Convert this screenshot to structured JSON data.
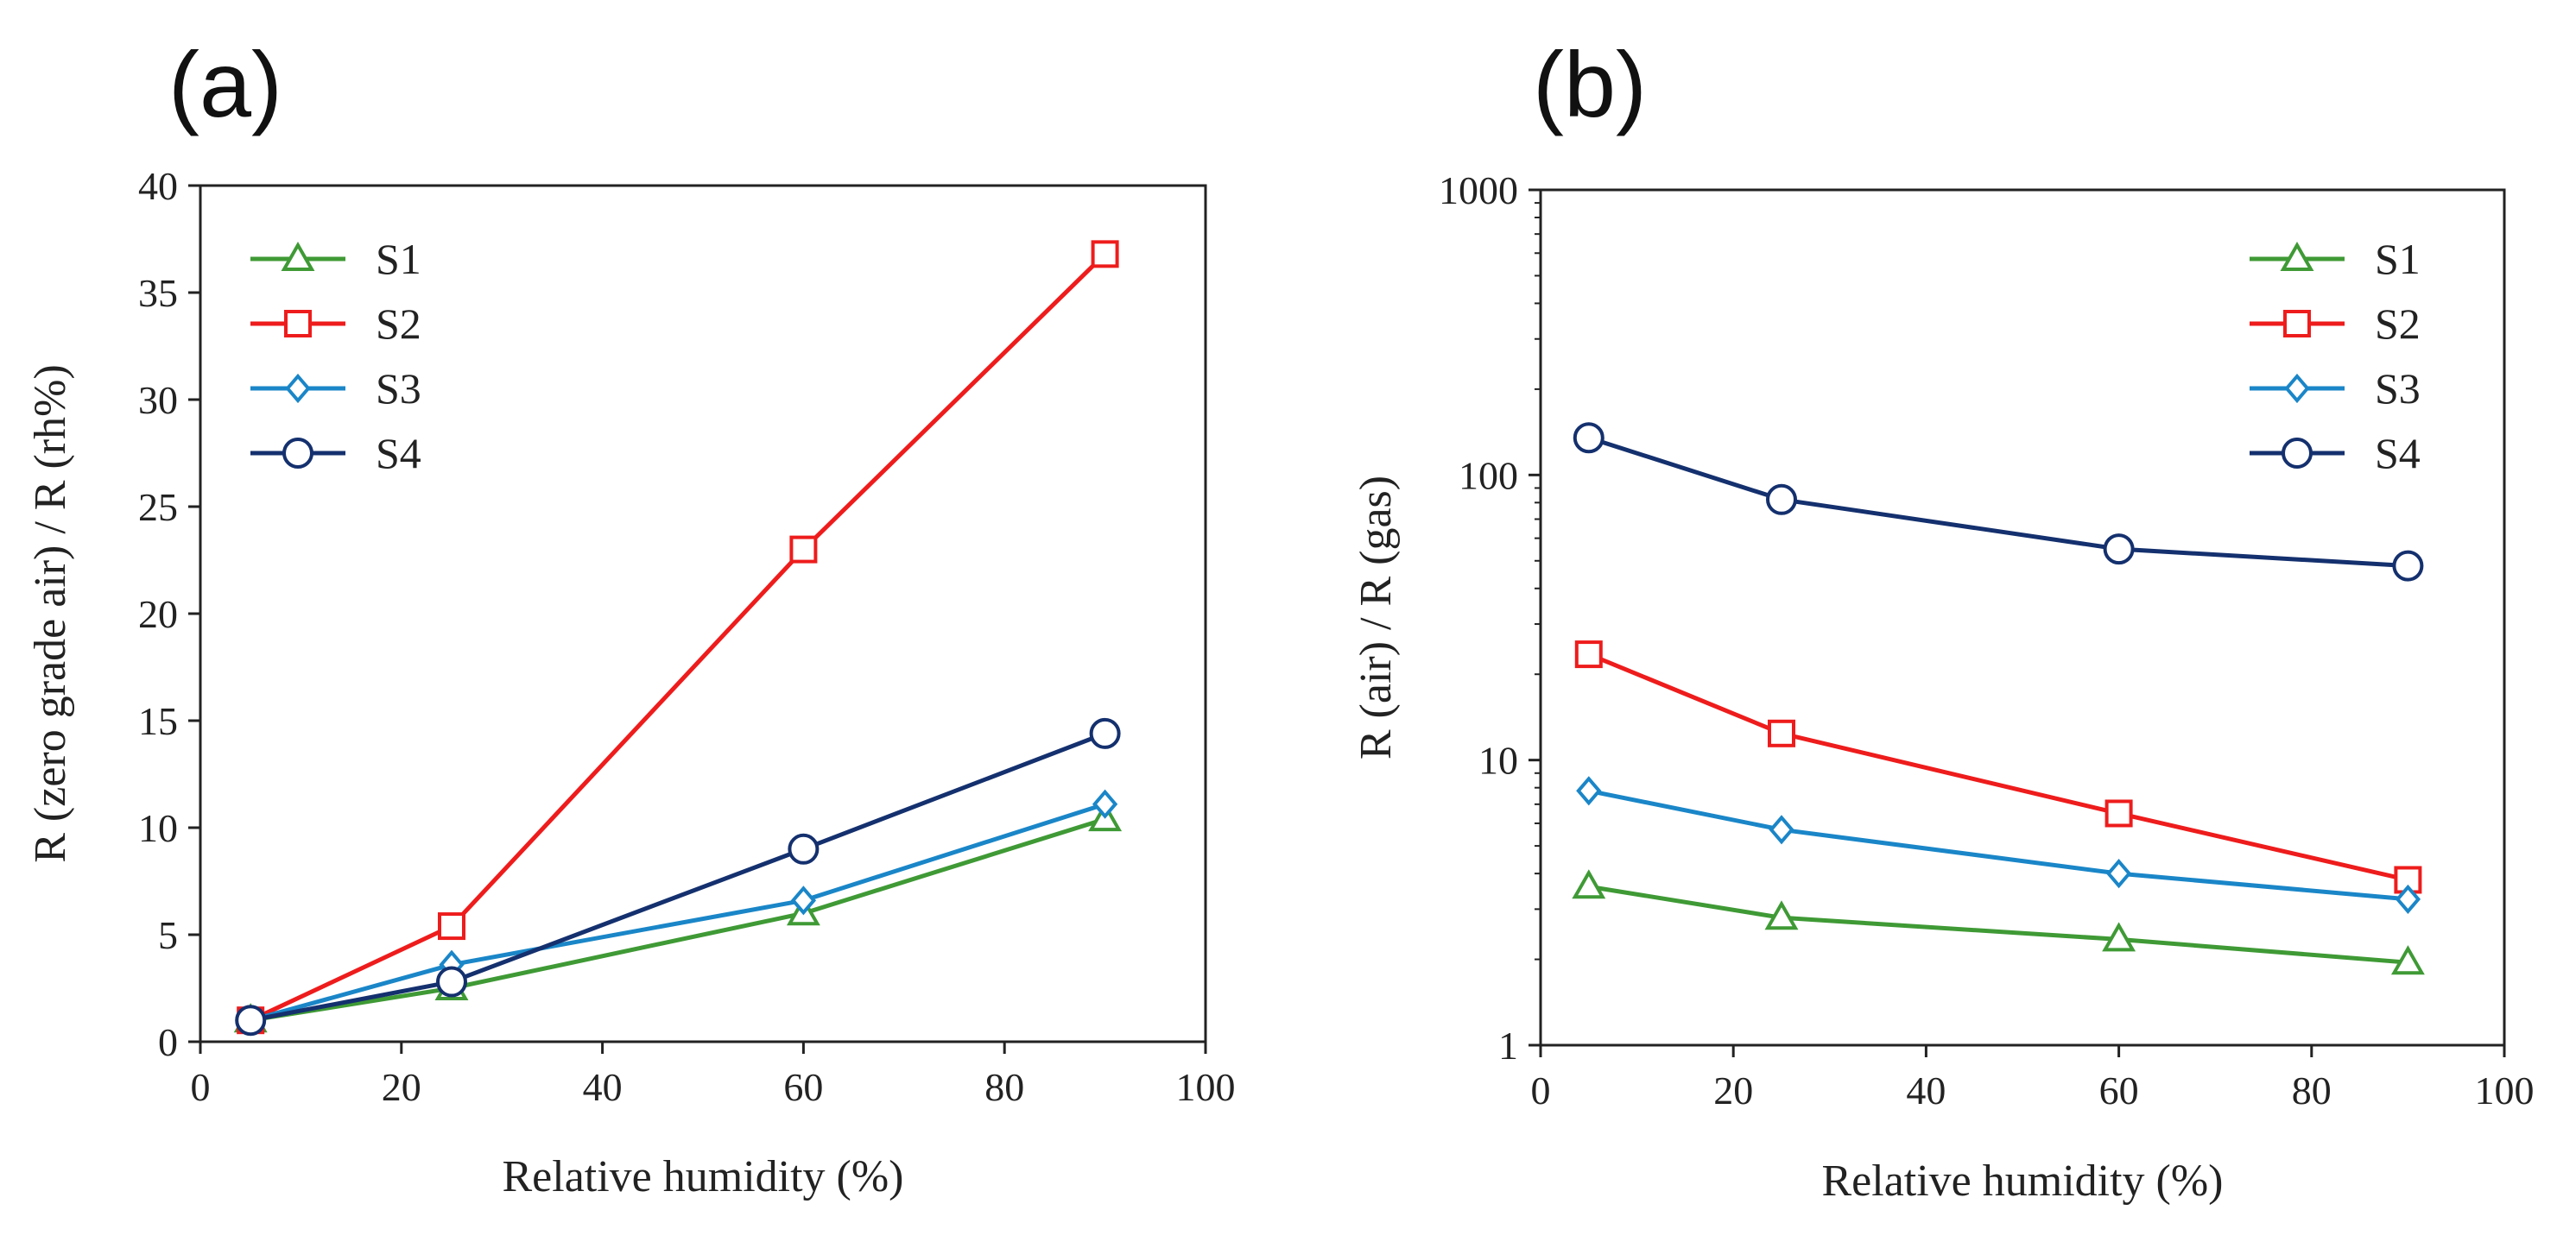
{
  "chart_data": [
    {
      "panel_label": "(a)",
      "type": "line",
      "x": [
        5,
        25,
        60,
        90
      ],
      "xlabel": "Relative humidity (%)",
      "ylabel": "R (zero grade air) / R (rh%)",
      "xlim": [
        0,
        100
      ],
      "ylim": [
        0,
        40
      ],
      "yscale": "linear",
      "xticks": [
        0,
        20,
        40,
        60,
        80,
        100
      ],
      "yticks": [
        0,
        5,
        10,
        15,
        20,
        25,
        30,
        35,
        40
      ],
      "grid": false,
      "legend_position": "top-left",
      "series": [
        {
          "name": "S1",
          "color": "#3f9a35",
          "marker": "triangle",
          "values": [
            1.0,
            2.5,
            6.0,
            10.4
          ]
        },
        {
          "name": "S2",
          "color": "#ee1c1c",
          "marker": "square",
          "values": [
            1.0,
            5.4,
            23.0,
            36.8
          ]
        },
        {
          "name": "S3",
          "color": "#1a86c8",
          "marker": "diamond",
          "values": [
            1.0,
            3.6,
            6.6,
            11.1
          ]
        },
        {
          "name": "S4",
          "color": "#14306e",
          "marker": "circle",
          "values": [
            1.0,
            2.8,
            9.0,
            14.4
          ]
        }
      ]
    },
    {
      "panel_label": "(b)",
      "type": "line",
      "x": [
        5,
        25,
        60,
        90
      ],
      "xlabel": "Relative humidity (%)",
      "ylabel": "R (air) / R (gas)",
      "xlim": [
        0,
        100
      ],
      "ylim": [
        1,
        1000
      ],
      "yscale": "log",
      "xticks": [
        0,
        20,
        40,
        60,
        80,
        100
      ],
      "yticks": [
        1,
        10,
        100,
        1000
      ],
      "grid": false,
      "legend_position": "top-right",
      "series": [
        {
          "name": "S1",
          "color": "#3f9a35",
          "marker": "triangle",
          "values": [
            3.6,
            2.8,
            2.35,
            1.95
          ]
        },
        {
          "name": "S2",
          "color": "#ee1c1c",
          "marker": "square",
          "values": [
            23.5,
            12.4,
            6.5,
            3.8
          ]
        },
        {
          "name": "S3",
          "color": "#1a86c8",
          "marker": "diamond",
          "values": [
            7.8,
            5.7,
            4.0,
            3.25
          ]
        },
        {
          "name": "S4",
          "color": "#14306e",
          "marker": "circle",
          "values": [
            135,
            82,
            55,
            48
          ]
        }
      ]
    }
  ]
}
